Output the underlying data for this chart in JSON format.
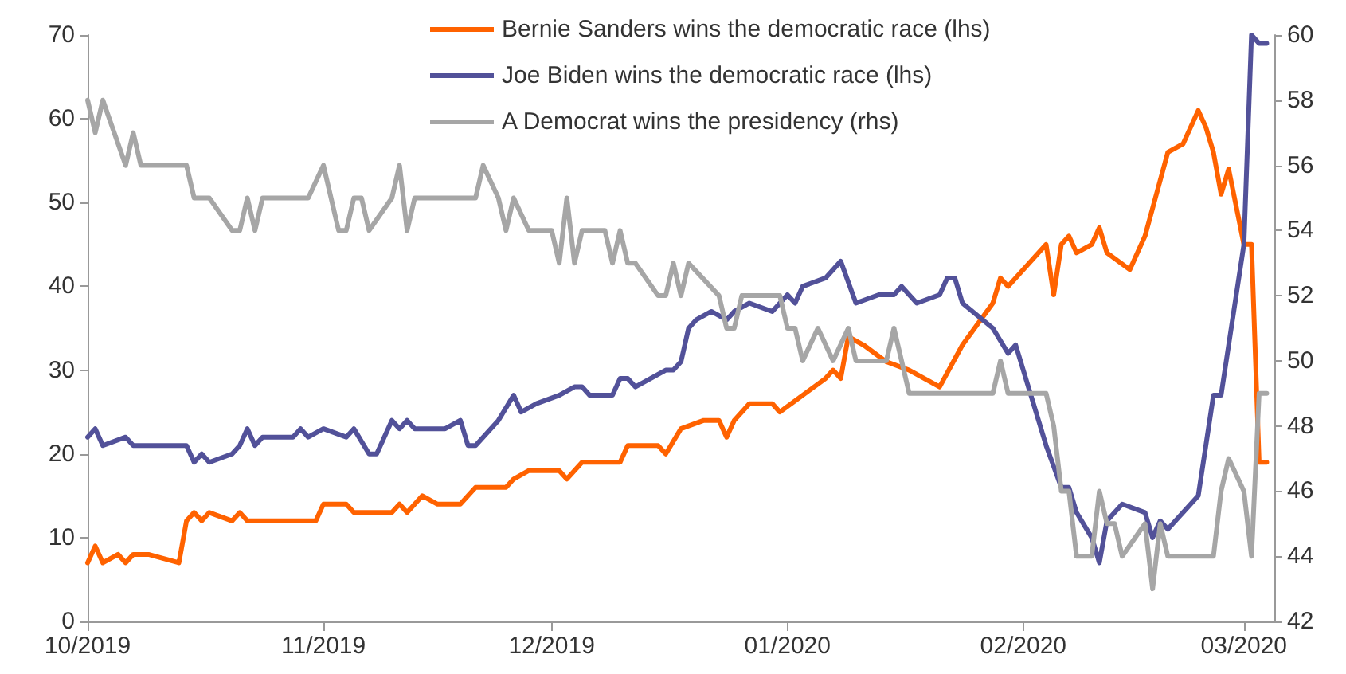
{
  "chart_data": {
    "type": "line",
    "xlim": [
      "2019-10-01",
      "2020-03-05"
    ],
    "xticks": [
      {
        "value": "2019-10-01",
        "label": "10/2019"
      },
      {
        "value": "2019-11-01",
        "label": "11/2019"
      },
      {
        "value": "2019-12-01",
        "label": "12/2019"
      },
      {
        "value": "2020-01-01",
        "label": "01/2020"
      },
      {
        "value": "2020-02-01",
        "label": "02/2020"
      },
      {
        "value": "2020-03-01",
        "label": "03/2020"
      }
    ],
    "ylim": [
      0,
      70
    ],
    "yticks": [
      0,
      10,
      20,
      30,
      40,
      50,
      60,
      70
    ],
    "y2lim": [
      42,
      60
    ],
    "y2ticks": [
      42,
      44,
      46,
      48,
      50,
      52,
      54,
      56,
      58,
      60
    ],
    "grid": false,
    "legend": "top right",
    "series": [
      {
        "name": "Bernie Sanders wins the democratic race (lhs)",
        "color": "#ff6200",
        "x": [
          "2019-10-01",
          "2019-10-02",
          "2019-10-03",
          "2019-10-05",
          "2019-10-06",
          "2019-10-07",
          "2019-10-09",
          "2019-10-13",
          "2019-10-14",
          "2019-10-15",
          "2019-10-16",
          "2019-10-17",
          "2019-10-20",
          "2019-10-21",
          "2019-10-22",
          "2019-10-31",
          "2019-11-01",
          "2019-11-04",
          "2019-11-05",
          "2019-11-10",
          "2019-11-11",
          "2019-11-12",
          "2019-11-14",
          "2019-11-16",
          "2019-11-19",
          "2019-11-21",
          "2019-11-25",
          "2019-11-26",
          "2019-11-28",
          "2019-12-02",
          "2019-12-03",
          "2019-12-05",
          "2019-12-10",
          "2019-12-11",
          "2019-12-15",
          "2019-12-16",
          "2019-12-18",
          "2019-12-21",
          "2019-12-23",
          "2019-12-24",
          "2019-12-25",
          "2019-12-27",
          "2019-12-30",
          "2019-12-31",
          "2020-01-03",
          "2020-01-06",
          "2020-01-07",
          "2020-01-08",
          "2020-01-09",
          "2020-01-11",
          "2020-01-14",
          "2020-01-17",
          "2020-01-21",
          "2020-01-24",
          "2020-01-28",
          "2020-01-29",
          "2020-01-30",
          "2020-02-04",
          "2020-02-05",
          "2020-02-06",
          "2020-02-07",
          "2020-02-08",
          "2020-02-10",
          "2020-02-11",
          "2020-02-12",
          "2020-02-15",
          "2020-02-17",
          "2020-02-20",
          "2020-02-22",
          "2020-02-24",
          "2020-02-25",
          "2020-02-26",
          "2020-02-27",
          "2020-02-28",
          "2020-03-01",
          "2020-03-02",
          "2020-03-03",
          "2020-03-04"
        ],
        "values": [
          7,
          9,
          7,
          8,
          7,
          8,
          8,
          7,
          12,
          13,
          12,
          13,
          12,
          13,
          12,
          12,
          14,
          14,
          13,
          13,
          14,
          13,
          15,
          14,
          14,
          16,
          16,
          17,
          18,
          18,
          17,
          19,
          19,
          21,
          21,
          20,
          23,
          24,
          24,
          22,
          24,
          26,
          26,
          25,
          27,
          29,
          30,
          29,
          34,
          33,
          31,
          30,
          28,
          33,
          38,
          41,
          40,
          45,
          39,
          45,
          46,
          44,
          45,
          47,
          44,
          42,
          46,
          56,
          57,
          61,
          59,
          56,
          51,
          54,
          45,
          45,
          19,
          19
        ]
      },
      {
        "name": "Joe Biden wins the democratic race (lhs)",
        "color": "#525199",
        "x": [
          "2019-10-01",
          "2019-10-02",
          "2019-10-03",
          "2019-10-06",
          "2019-10-07",
          "2019-10-14",
          "2019-10-15",
          "2019-10-16",
          "2019-10-17",
          "2019-10-20",
          "2019-10-21",
          "2019-10-22",
          "2019-10-23",
          "2019-10-24",
          "2019-10-28",
          "2019-10-29",
          "2019-10-30",
          "2019-11-01",
          "2019-11-04",
          "2019-11-05",
          "2019-11-07",
          "2019-11-08",
          "2019-11-10",
          "2019-11-11",
          "2019-11-12",
          "2019-11-13",
          "2019-11-17",
          "2019-11-19",
          "2019-11-20",
          "2019-11-21",
          "2019-11-24",
          "2019-11-26",
          "2019-11-27",
          "2019-11-29",
          "2019-12-02",
          "2019-12-04",
          "2019-12-05",
          "2019-12-06",
          "2019-12-09",
          "2019-12-10",
          "2019-12-11",
          "2019-12-12",
          "2019-12-16",
          "2019-12-17",
          "2019-12-18",
          "2019-12-19",
          "2019-12-20",
          "2019-12-22",
          "2019-12-24",
          "2019-12-25",
          "2019-12-27",
          "2019-12-30",
          "2020-01-01",
          "2020-01-02",
          "2020-01-03",
          "2020-01-06",
          "2020-01-08",
          "2020-01-10",
          "2020-01-13",
          "2020-01-15",
          "2020-01-16",
          "2020-01-18",
          "2020-01-21",
          "2020-01-22",
          "2020-01-23",
          "2020-01-24",
          "2020-01-28",
          "2020-01-30",
          "2020-01-31",
          "2020-02-02",
          "2020-02-04",
          "2020-02-06",
          "2020-02-07",
          "2020-02-08",
          "2020-02-10",
          "2020-02-11",
          "2020-02-12",
          "2020-02-14",
          "2020-02-17",
          "2020-02-18",
          "2020-02-19",
          "2020-02-20",
          "2020-02-24",
          "2020-02-25",
          "2020-02-26",
          "2020-02-27",
          "2020-03-01",
          "2020-03-02",
          "2020-03-03",
          "2020-03-04"
        ],
        "values": [
          22,
          23,
          21,
          22,
          21,
          21,
          19,
          20,
          19,
          20,
          21,
          23,
          21,
          22,
          22,
          23,
          22,
          23,
          22,
          23,
          20,
          20,
          24,
          23,
          24,
          23,
          23,
          24,
          21,
          21,
          24,
          27,
          25,
          26,
          27,
          28,
          28,
          27,
          27,
          29,
          29,
          28,
          30,
          30,
          31,
          35,
          36,
          37,
          36,
          37,
          38,
          37,
          39,
          38,
          40,
          41,
          43,
          38,
          39,
          39,
          40,
          38,
          39,
          41,
          41,
          38,
          35,
          32,
          33,
          27,
          21,
          16,
          16,
          13,
          10,
          7,
          12,
          14,
          13,
          10,
          12,
          11,
          15,
          21,
          27,
          27,
          45,
          70,
          69,
          69
        ]
      },
      {
        "name": "A Democrat wins the presidency (rhs)",
        "color": "#a6a6a6",
        "axis": "y2",
        "x": [
          "2019-10-01",
          "2019-10-02",
          "2019-10-03",
          "2019-10-06",
          "2019-10-07",
          "2019-10-08",
          "2019-10-14",
          "2019-10-15",
          "2019-10-17",
          "2019-10-20",
          "2019-10-21",
          "2019-10-22",
          "2019-10-23",
          "2019-10-24",
          "2019-10-30",
          "2019-11-01",
          "2019-11-03",
          "2019-11-04",
          "2019-11-05",
          "2019-11-06",
          "2019-11-07",
          "2019-11-10",
          "2019-11-11",
          "2019-11-12",
          "2019-11-13",
          "2019-11-18",
          "2019-11-21",
          "2019-11-22",
          "2019-11-24",
          "2019-11-25",
          "2019-11-26",
          "2019-11-28",
          "2019-12-01",
          "2019-12-02",
          "2019-12-03",
          "2019-12-04",
          "2019-12-05",
          "2019-12-08",
          "2019-12-09",
          "2019-12-10",
          "2019-12-11",
          "2019-12-12",
          "2019-12-15",
          "2019-12-16",
          "2019-12-17",
          "2019-12-18",
          "2019-12-19",
          "2019-12-23",
          "2019-12-24",
          "2019-12-25",
          "2019-12-26",
          "2019-12-31",
          "2020-01-01",
          "2020-01-02",
          "2020-01-03",
          "2020-01-05",
          "2020-01-07",
          "2020-01-09",
          "2020-01-10",
          "2020-01-14",
          "2020-01-15",
          "2020-01-17",
          "2020-01-28",
          "2020-01-29",
          "2020-01-30",
          "2020-02-04",
          "2020-02-05",
          "2020-02-06",
          "2020-02-07",
          "2020-02-08",
          "2020-02-10",
          "2020-02-11",
          "2020-02-12",
          "2020-02-13",
          "2020-02-14",
          "2020-02-17",
          "2020-02-18",
          "2020-02-19",
          "2020-02-20",
          "2020-02-26",
          "2020-02-27",
          "2020-02-28",
          "2020-03-01",
          "2020-03-02",
          "2020-03-03",
          "2020-03-04"
        ],
        "values": [
          58,
          57,
          58,
          56,
          57,
          56,
          56,
          55,
          55,
          54,
          54,
          55,
          54,
          55,
          55,
          56,
          54,
          54,
          55,
          55,
          54,
          55,
          56,
          54,
          55,
          55,
          55,
          56,
          55,
          54,
          55,
          54,
          54,
          53,
          55,
          53,
          54,
          54,
          53,
          54,
          53,
          53,
          52,
          52,
          53,
          52,
          53,
          52,
          51,
          51,
          52,
          52,
          51,
          51,
          50,
          51,
          50,
          51,
          50,
          50,
          51,
          49,
          49,
          50,
          49,
          49,
          48,
          46,
          46,
          44,
          44,
          46,
          45,
          45,
          44,
          45,
          43,
          45,
          44,
          44,
          46,
          47,
          46,
          44,
          49,
          49
        ]
      }
    ]
  }
}
